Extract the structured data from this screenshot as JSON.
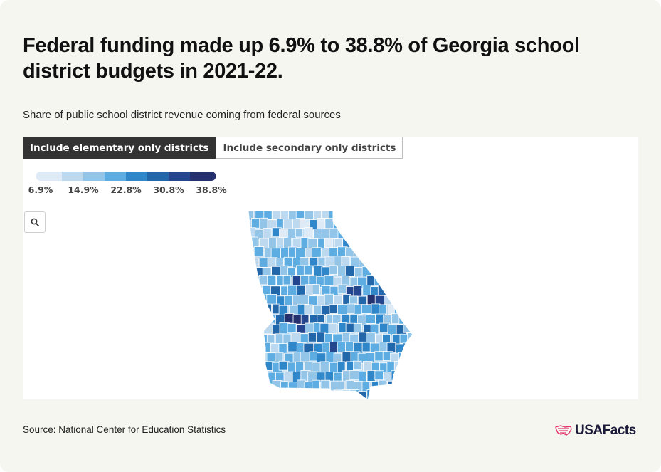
{
  "title": "Federal funding made up 6.9% to 38.8% of Georgia school district budgets in 2021-22.",
  "subtitle": "Share of public school district revenue coming from federal sources",
  "tabs": [
    {
      "label": "Include elementary only districts",
      "active": true
    },
    {
      "label": "Include secondary only districts",
      "active": false
    }
  ],
  "legend": {
    "colors": [
      "#deebf7",
      "#bdd9f0",
      "#92c5e8",
      "#5dade2",
      "#2f86c8",
      "#2367ab",
      "#23468f",
      "#25306e"
    ],
    "labels": [
      "6.9%",
      "14.9%",
      "22.8%",
      "30.8%",
      "38.8%"
    ],
    "min": 6.9,
    "max": 38.8
  },
  "zoom_icon": "search-icon",
  "source": "Source: National Center for Education Statistics",
  "logo": {
    "icon": "us-flag-map-icon",
    "text": "USAFacts",
    "color": "#e3336d"
  }
}
